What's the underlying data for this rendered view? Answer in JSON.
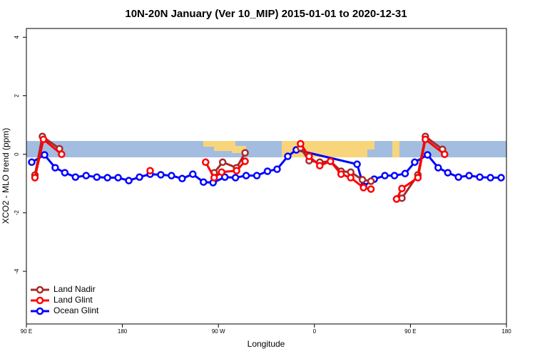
{
  "chart_data": {
    "type": "line",
    "title": "10N-20N January (Ver 10_MIP)   2015-01-01 to 2020-12-31",
    "x_label": "Longitude",
    "y_label": "XCO2 - MLO trend (ppm)",
    "xlim": [
      90,
      540
    ],
    "ylim": [
      -5.8,
      4.3
    ],
    "xticks": [
      {
        "value": 90,
        "label": "90 E"
      },
      180,
      {
        "value": 270,
        "label": "90 W"
      },
      {
        "value": 360,
        "label": "0"
      },
      {
        "value": 450,
        "label": "90 E"
      },
      {
        "value": 540,
        "label": "180"
      }
    ],
    "yticks": [
      -4,
      -2,
      0,
      2,
      4
    ],
    "legend": "bottom-left",
    "series": [
      {
        "name": "Land Nadir",
        "color": "#a52a2a",
        "x": [
          98,
          105,
          121,
          null,
          266,
          274,
          287,
          295,
          null,
          347,
          355,
          365,
          375,
          385,
          394,
          405,
          413,
          null,
          437,
          442,
          457,
          464,
          480,
          482
        ],
        "values": [
          -0.71,
          0.61,
          0.19,
          null,
          -0.63,
          -0.27,
          -0.46,
          0.05,
          null,
          0.22,
          -0.22,
          -0.27,
          -0.24,
          -0.58,
          -0.61,
          -0.87,
          -0.92,
          null,
          -1.53,
          -1.5,
          -0.7,
          0.61,
          0.17,
          0.0
        ]
      },
      {
        "name": "Land Glint",
        "color": "#ff0000",
        "x": [
          98,
          106,
          123,
          null,
          206,
          null,
          258,
          266,
          273,
          287,
          295,
          null,
          347,
          355,
          365,
          375,
          385,
          394,
          406,
          413,
          null,
          437,
          442,
          457,
          464,
          482
        ],
        "values": [
          -0.8,
          0.51,
          0.0,
          null,
          -0.56,
          null,
          -0.27,
          -0.8,
          -0.61,
          -0.56,
          -0.24,
          null,
          0.36,
          -0.07,
          -0.39,
          -0.24,
          -0.68,
          -0.8,
          -1.14,
          -1.19,
          null,
          -1.53,
          -1.17,
          -0.8,
          0.51,
          0.0
        ]
      },
      {
        "name": "Ocean Glint",
        "color": "#0000ff",
        "x": [
          95,
          107,
          117,
          126,
          136,
          146,
          156,
          166,
          176,
          186,
          196,
          206,
          216,
          226,
          236,
          246,
          256,
          265,
          276,
          286,
          296,
          306,
          316,
          325,
          335,
          343,
          400,
          406,
          416,
          426,
          435,
          445,
          454,
          466,
          476,
          485,
          495,
          505,
          515,
          525,
          535
        ],
        "values": [
          -0.27,
          -0.02,
          -0.46,
          -0.63,
          -0.78,
          -0.73,
          -0.78,
          -0.8,
          -0.8,
          -0.9,
          -0.78,
          -0.68,
          -0.7,
          -0.73,
          -0.83,
          -0.68,
          -0.95,
          -0.97,
          -0.78,
          -0.8,
          -0.73,
          -0.73,
          -0.58,
          -0.51,
          -0.07,
          0.15,
          -0.34,
          -1.09,
          -0.85,
          -0.73,
          -0.73,
          -0.66,
          -0.27,
          -0.02,
          -0.46,
          -0.63,
          -0.78,
          -0.73,
          -0.78,
          -0.8,
          -0.8
        ]
      }
    ]
  }
}
